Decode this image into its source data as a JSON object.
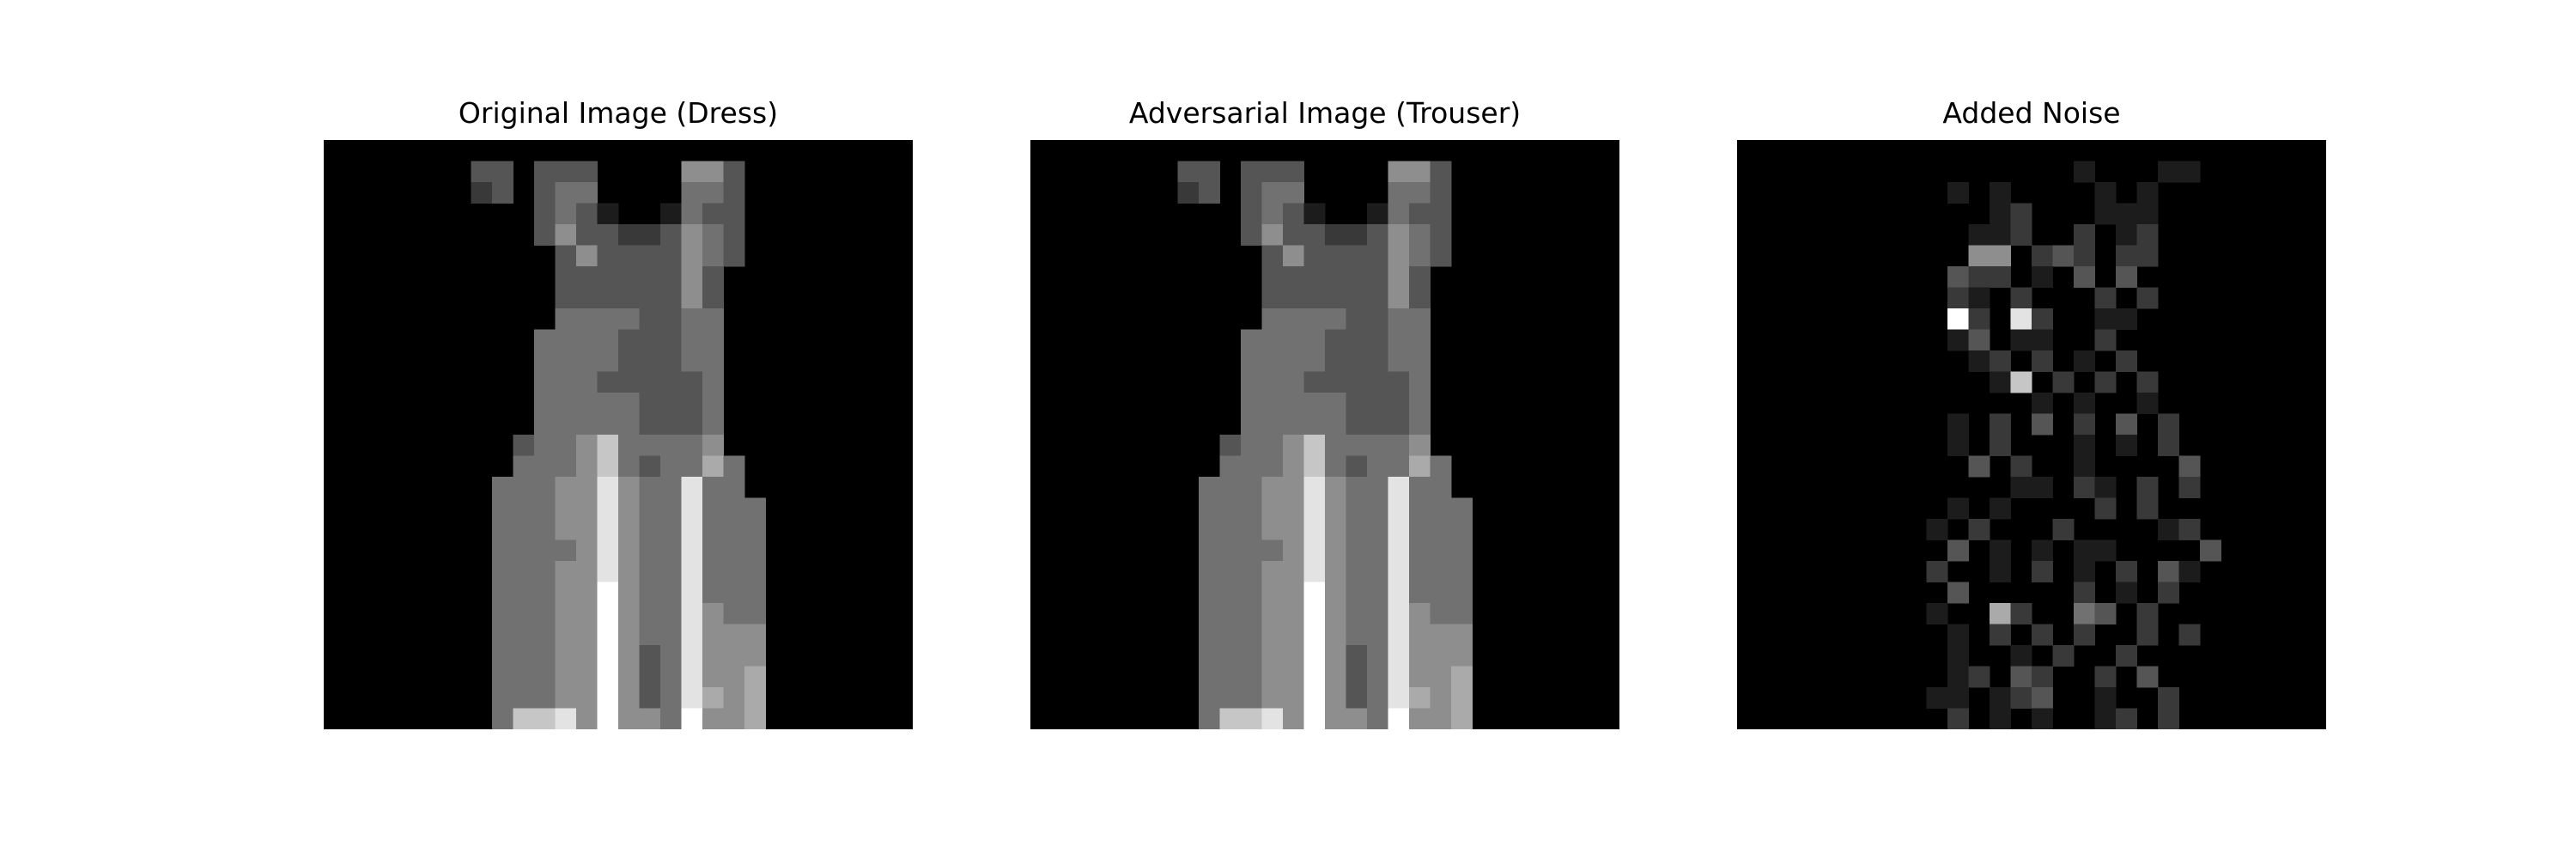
{
  "figure": {
    "panels": [
      {
        "id": "original",
        "title": "Original Image (Dress)"
      },
      {
        "id": "adversarial",
        "title": "Adversarial Image (Trouser)"
      },
      {
        "id": "noise",
        "title": "Added Noise"
      }
    ]
  },
  "colors": {
    "background": "#ffffff",
    "image_background": "#000000"
  },
  "grid_size": 28,
  "images": {
    "original": [
      "0000000000000000000000000000",
      "0000000330333000055300000000",
      "0000000230344000044300000000",
      "0000000000343100143300000000",
      "0000000000353322354300000000",
      "0000000000035333354300000000",
      "0000000000033333353000000000",
      "0000000000033333353000000000",
      "0000000000044443344000000000",
      "0000000000444433344000000000",
      "0000000000444433344000000000",
      "0000000000444333334000000000",
      "0000000000444443334000000000",
      "0000000000444443334000000000",
      "0000000003445744445000000000",
      "0000000004445743446400000000",
      "0000000044455854484400000000",
      "0000000044455854484440000000",
      "0000000044455854484440000000",
      "0000000044445854484440000000",
      "0000000044455854484440000000",
      "0000000044455954484440000000",
      "0000000044455954485440000000",
      "0000000044455954485550000000",
      "0000000044455953485550000000",
      "0000000044455953485560000000",
      "0000000044455953486560000000",
      "0000000047785955495560000000"
    ],
    "adversarial": [
      "0000000000000000000000000000",
      "0000000330333000055300000000",
      "0000000230344000044300000000",
      "0000000000343100143300000000",
      "0000000000353322354300000000",
      "0000000000035333354300000000",
      "0000000000033333353000000000",
      "0000000000033333353000000000",
      "0000000000044443344000000000",
      "0000000000444433344000000000",
      "0000000000444433344000000000",
      "0000000000444333334000000000",
      "0000000000444443334000000000",
      "0000000000444443334000000000",
      "0000000003445744445000000000",
      "0000000004445743446400000000",
      "0000000044455854484400000000",
      "0000000044455854484440000000",
      "0000000044455854484440000000",
      "0000000044445854484440000000",
      "0000000044455854484440000000",
      "0000000044455954484440000000",
      "0000000044455954485440000000",
      "0000000044455954485550000000",
      "0000000044455953485550000000",
      "0000000044455953485560000000",
      "0000000044455953486560000000",
      "0000000047785955495560000000"
    ],
    "noise": [
      "0000000000000000000000000000",
      "0000000000000000100011000000",
      "0000000000101000010100000000",
      "0000000000001200011100000000",
      "0000000000011200201200000000",
      "0000000000055023202200000000",
      "0000000000322010303000000000",
      "0000000000210200020200000000",
      "0000000000920820011000000000",
      "0000000000130110020000000000",
      "0000000000012020102000000000",
      "0000000000001702020200000000",
      "0000000000000010100100000000",
      "0000000000102030203020000000",
      "0000000000102000101020000000",
      "0000000000030200100003000000",
      "0000000000000110210202000000",
      "0000000000101000020200000000",
      "0000000001020002000012000000",
      "0000000000301010110000300000",
      "0000000002001020102031000000",
      "0000000000300000201020000000",
      "0000000001006200430200000000",
      "0000000000102020200202000000",
      "0000000000100102002000000000",
      "0000000000120320020300000000",
      "0000000001101230010020000000",
      "0000000000201010012020000000"
    ]
  }
}
